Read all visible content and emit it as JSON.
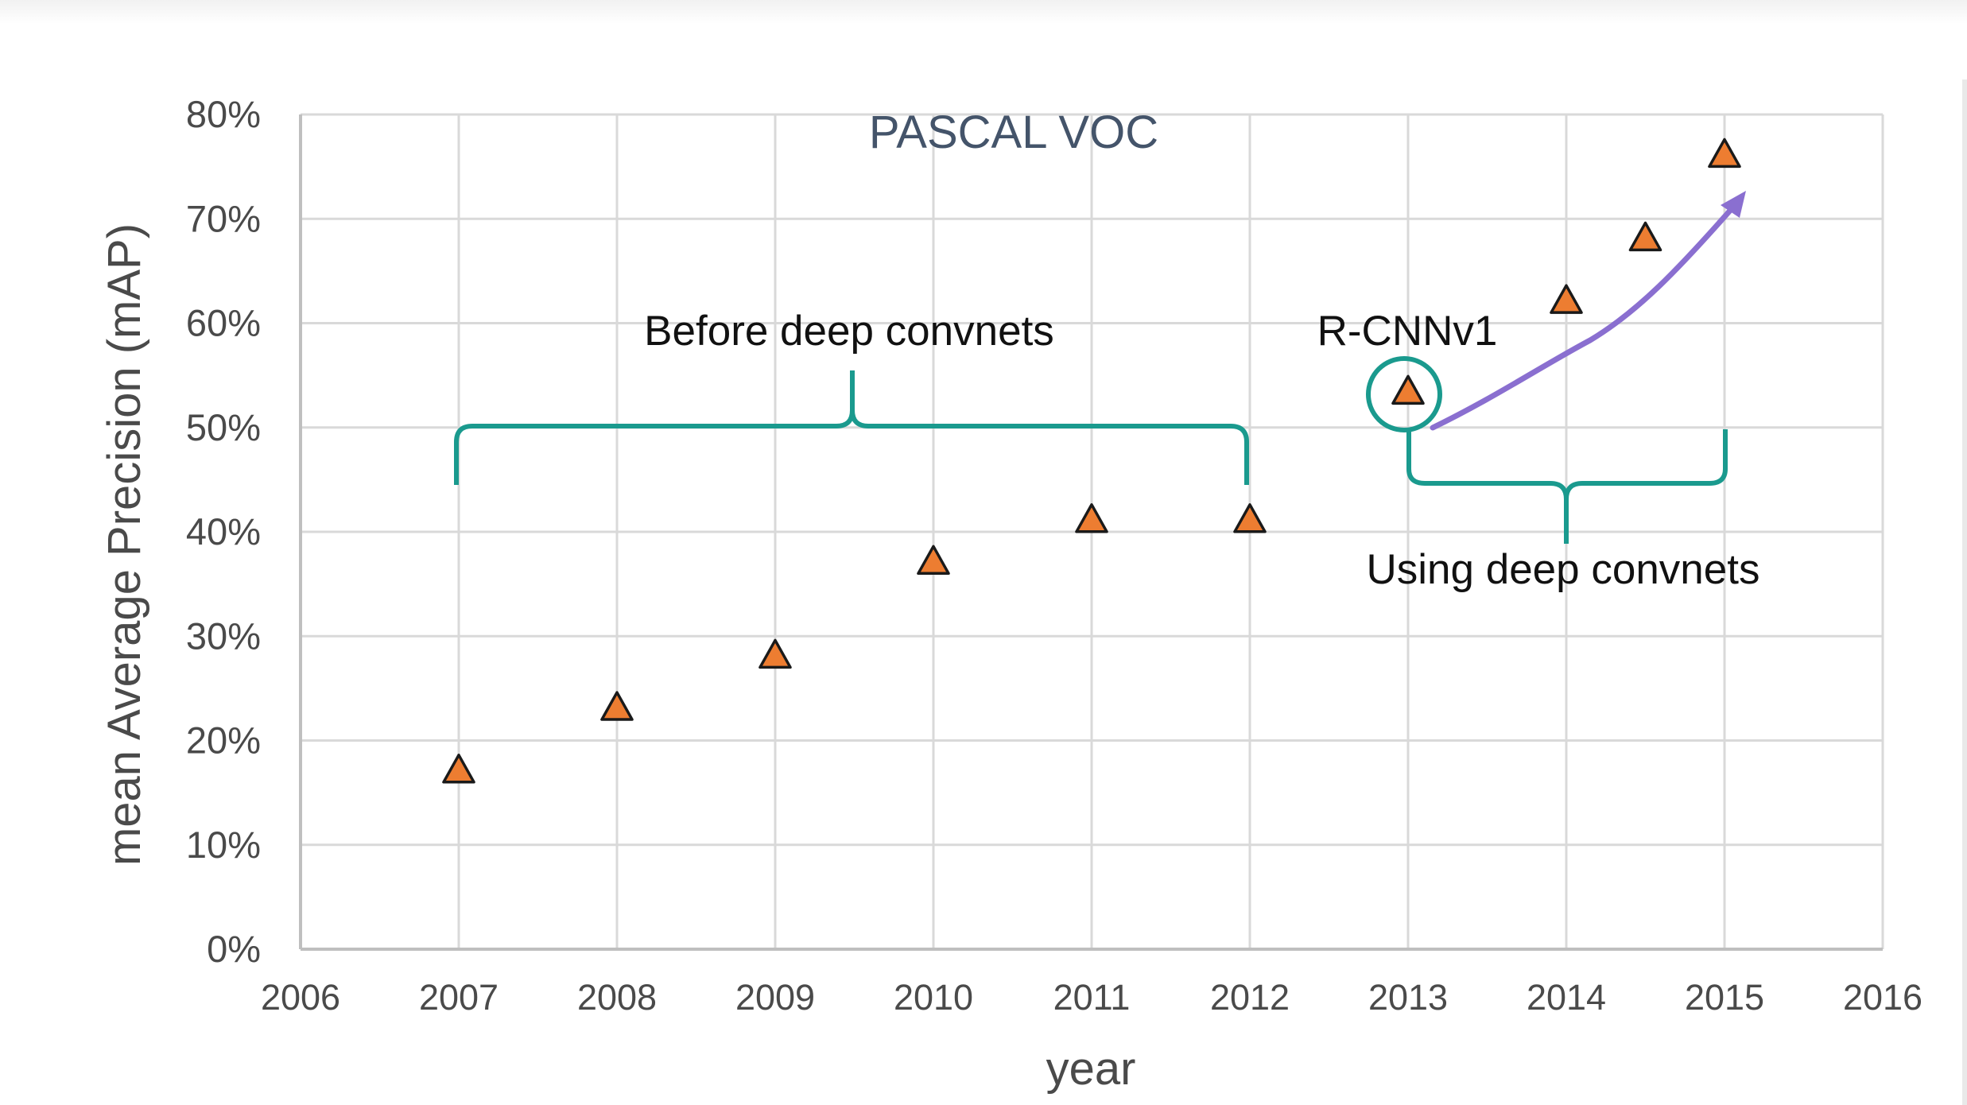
{
  "chart_data": {
    "type": "scatter",
    "title": "PASCAL VOC",
    "xlabel": "year",
    "ylabel": "mean Average Precision (mAP)",
    "xlim": [
      2006,
      2016
    ],
    "ylim": [
      0,
      80
    ],
    "x_ticks": [
      "2006",
      "2007",
      "2008",
      "2009",
      "2010",
      "2011",
      "2012",
      "2013",
      "2014",
      "2015",
      "2016"
    ],
    "y_ticks": [
      "0%",
      "10%",
      "20%",
      "30%",
      "40%",
      "50%",
      "60%",
      "70%",
      "80%"
    ],
    "grid": true,
    "series": [
      {
        "marker": "triangle",
        "color": "#ed7d31",
        "points": [
          {
            "x": 2007,
            "y": 17
          },
          {
            "x": 2008,
            "y": 23
          },
          {
            "x": 2009,
            "y": 28
          },
          {
            "x": 2010,
            "y": 37
          },
          {
            "x": 2011,
            "y": 41
          },
          {
            "x": 2012,
            "y": 41
          },
          {
            "x": 2013,
            "y": 53.3
          },
          {
            "x": 2014,
            "y": 62
          },
          {
            "x": 2014.5,
            "y": 68
          },
          {
            "x": 2015,
            "y": 76
          }
        ]
      }
    ],
    "annotations": {
      "before": "Before deep convnets",
      "rcnn": "R-CNNv1",
      "using": "Using deep convnets"
    },
    "colors": {
      "bracket": "#1a9a8e",
      "trend_arrow": "#8a6fd0",
      "grid": "#d9d9d9",
      "axis": "#bfbfbf"
    }
  }
}
